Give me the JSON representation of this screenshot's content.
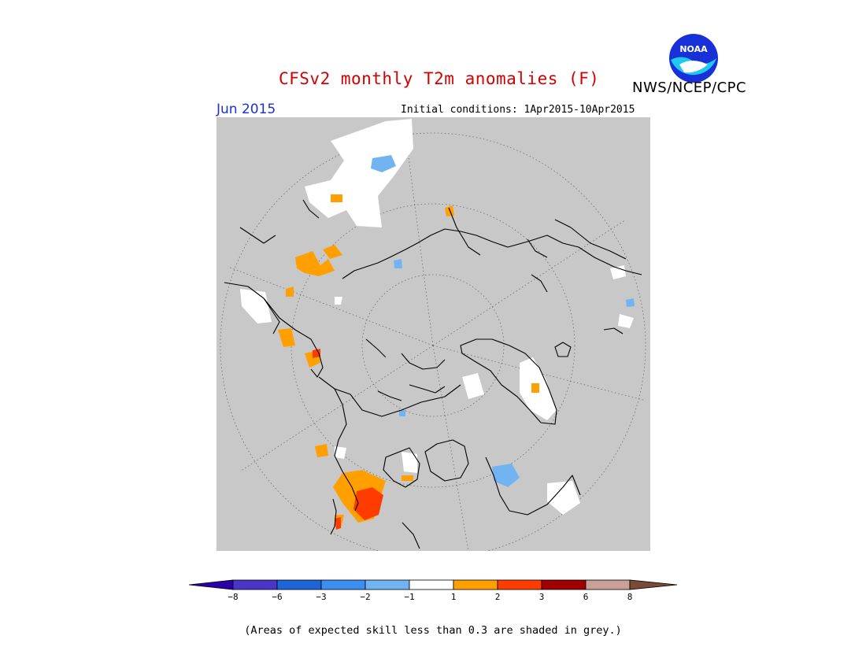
{
  "title": "CFSv2 monthly T2m anomalies (F)",
  "org_label": "NWS/NCEP/CPC",
  "logo_text": "NOAA",
  "month_label": "Jun 2015",
  "initial_conditions": "Initial conditions: 1Apr2015-10Apr2015",
  "footnote": "(Areas of expected skill less than 0.3 are shaded in grey.)",
  "colors": {
    "skill_mask": "#c8c8c8",
    "land_outline": "#000000",
    "title": "#d40000",
    "month": "#1a2fd6"
  },
  "legend": {
    "ticks": [
      {
        "label": "-8"
      },
      {
        "label": "-6"
      },
      {
        "label": "-3"
      },
      {
        "label": "-2"
      },
      {
        "label": "-1"
      },
      {
        "label": "1"
      },
      {
        "label": "2"
      },
      {
        "label": "3"
      },
      {
        "label": "6"
      },
      {
        "label": "8"
      }
    ],
    "bins": [
      {
        "color": "#2a00a8"
      },
      {
        "color": "#4a35c8"
      },
      {
        "color": "#1c64d8"
      },
      {
        "color": "#3c8ef0"
      },
      {
        "color": "#72b4f2"
      },
      {
        "color": "#ffffff"
      },
      {
        "color": "#ffa000"
      },
      {
        "color": "#ff3c00"
      },
      {
        "color": "#a00000"
      },
      {
        "color": "#c8a096"
      },
      {
        "color": "#7a4a38"
      }
    ]
  }
}
